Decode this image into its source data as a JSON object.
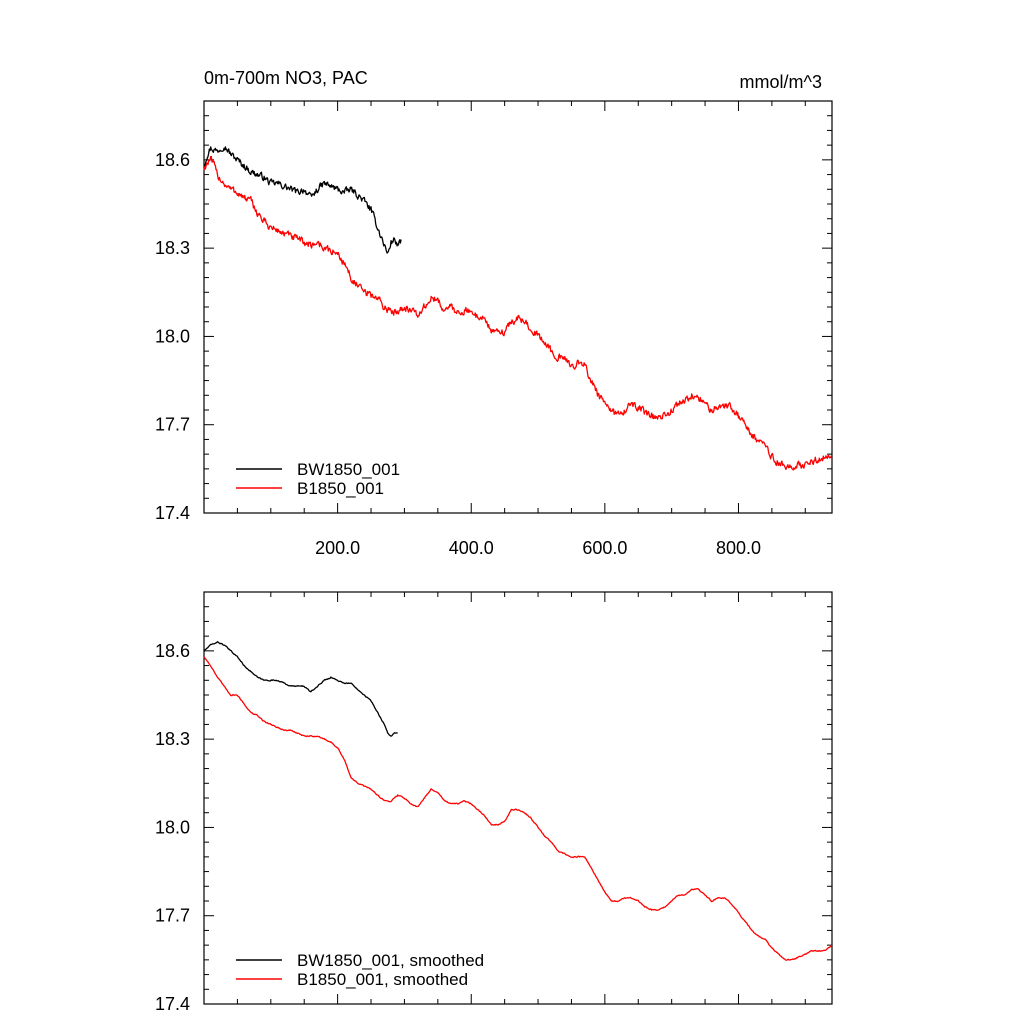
{
  "chart_data": [
    {
      "type": "line",
      "title": "0m-700m NO3, PAC",
      "units": "mmol/m^3",
      "xlim": [
        0,
        940
      ],
      "ylim": [
        17.4,
        18.8
      ],
      "x_major_ticks": [
        200,
        400,
        600,
        800
      ],
      "x_minor_step": 50,
      "x_tick_labels": [
        "200.0",
        "400.0",
        "600.0",
        "800.0"
      ],
      "y_major_ticks": [
        17.4,
        17.7,
        18.0,
        18.3,
        18.6
      ],
      "y_minor_step": 0.05,
      "y_tick_labels": [
        "17.4",
        "17.7",
        "18.0",
        "18.3",
        "18.6"
      ],
      "show_x_labels": true,
      "grid": false,
      "legend_position": "bottom-left",
      "series": [
        {
          "name": "BW1850_001",
          "color": "#000000",
          "noise": 0.018,
          "points": [
            [
              0,
              18.58
            ],
            [
              5,
              18.62
            ],
            [
              10,
              18.64
            ],
            [
              20,
              18.63
            ],
            [
              30,
              18.65
            ],
            [
              40,
              18.62
            ],
            [
              50,
              18.6
            ],
            [
              60,
              18.58
            ],
            [
              70,
              18.56
            ],
            [
              80,
              18.55
            ],
            [
              90,
              18.54
            ],
            [
              100,
              18.52
            ],
            [
              110,
              18.52
            ],
            [
              120,
              18.51
            ],
            [
              130,
              18.5
            ],
            [
              140,
              18.49
            ],
            [
              150,
              18.5
            ],
            [
              160,
              18.47
            ],
            [
              170,
              18.5
            ],
            [
              180,
              18.52
            ],
            [
              190,
              18.51
            ],
            [
              200,
              18.5
            ],
            [
              210,
              18.49
            ],
            [
              220,
              18.5
            ],
            [
              230,
              18.48
            ],
            [
              240,
              18.46
            ],
            [
              250,
              18.43
            ],
            [
              255,
              18.4
            ],
            [
              260,
              18.37
            ],
            [
              265,
              18.34
            ],
            [
              270,
              18.31
            ],
            [
              275,
              18.28
            ],
            [
              280,
              18.32
            ],
            [
              285,
              18.33
            ],
            [
              290,
              18.31
            ],
            [
              295,
              18.32
            ]
          ]
        },
        {
          "name": "B1850_001",
          "color": "#ff0000",
          "noise": 0.02,
          "points": [
            [
              0,
              18.57
            ],
            [
              5,
              18.59
            ],
            [
              10,
              18.6
            ],
            [
              15,
              18.58
            ],
            [
              20,
              18.55
            ],
            [
              30,
              18.52
            ],
            [
              40,
              18.5
            ],
            [
              50,
              18.49
            ],
            [
              60,
              18.47
            ],
            [
              70,
              18.46
            ],
            [
              80,
              18.42
            ],
            [
              90,
              18.39
            ],
            [
              100,
              18.37
            ],
            [
              110,
              18.36
            ],
            [
              120,
              18.35
            ],
            [
              130,
              18.34
            ],
            [
              140,
              18.33
            ],
            [
              150,
              18.32
            ],
            [
              160,
              18.31
            ],
            [
              170,
              18.32
            ],
            [
              180,
              18.3
            ],
            [
              190,
              18.29
            ],
            [
              200,
              18.28
            ],
            [
              210,
              18.25
            ],
            [
              220,
              18.2
            ],
            [
              230,
              18.17
            ],
            [
              240,
              18.15
            ],
            [
              250,
              18.14
            ],
            [
              260,
              18.13
            ],
            [
              270,
              18.1
            ],
            [
              280,
              18.08
            ],
            [
              290,
              18.09
            ],
            [
              300,
              18.1
            ],
            [
              310,
              18.09
            ],
            [
              320,
              18.07
            ],
            [
              330,
              18.1
            ],
            [
              340,
              18.13
            ],
            [
              350,
              18.12
            ],
            [
              360,
              18.09
            ],
            [
              370,
              18.1
            ],
            [
              380,
              18.08
            ],
            [
              390,
              18.09
            ],
            [
              400,
              18.08
            ],
            [
              410,
              18.07
            ],
            [
              420,
              18.06
            ],
            [
              430,
              18.02
            ],
            [
              440,
              18.01
            ],
            [
              450,
              18.02
            ],
            [
              460,
              18.05
            ],
            [
              470,
              18.06
            ],
            [
              480,
              18.05
            ],
            [
              490,
              18.03
            ],
            [
              500,
              18.0
            ],
            [
              510,
              17.98
            ],
            [
              520,
              17.95
            ],
            [
              530,
              17.93
            ],
            [
              540,
              17.92
            ],
            [
              550,
              17.9
            ],
            [
              560,
              17.91
            ],
            [
              570,
              17.9
            ],
            [
              580,
              17.85
            ],
            [
              590,
              17.8
            ],
            [
              600,
              17.77
            ],
            [
              610,
              17.74
            ],
            [
              620,
              17.74
            ],
            [
              630,
              17.75
            ],
            [
              640,
              17.77
            ],
            [
              650,
              17.76
            ],
            [
              660,
              17.74
            ],
            [
              670,
              17.73
            ],
            [
              680,
              17.72
            ],
            [
              690,
              17.73
            ],
            [
              700,
              17.75
            ],
            [
              710,
              17.77
            ],
            [
              720,
              17.78
            ],
            [
              730,
              17.8
            ],
            [
              740,
              17.79
            ],
            [
              750,
              17.77
            ],
            [
              760,
              17.75
            ],
            [
              770,
              17.76
            ],
            [
              780,
              17.77
            ],
            [
              790,
              17.76
            ],
            [
              800,
              17.73
            ],
            [
              810,
              17.7
            ],
            [
              820,
              17.67
            ],
            [
              830,
              17.64
            ],
            [
              840,
              17.63
            ],
            [
              850,
              17.59
            ],
            [
              860,
              17.57
            ],
            [
              870,
              17.56
            ],
            [
              880,
              17.55
            ],
            [
              890,
              17.56
            ],
            [
              900,
              17.57
            ],
            [
              910,
              17.58
            ],
            [
              920,
              17.58
            ],
            [
              930,
              17.59
            ],
            [
              940,
              17.6
            ]
          ]
        }
      ]
    },
    {
      "type": "line",
      "xlim": [
        0,
        940
      ],
      "ylim": [
        17.4,
        18.8
      ],
      "x_major_ticks": [
        200,
        400,
        600,
        800
      ],
      "x_minor_step": 50,
      "y_major_ticks": [
        17.4,
        17.7,
        18.0,
        18.3,
        18.6
      ],
      "y_minor_step": 0.05,
      "y_tick_labels": [
        "17.4",
        "17.7",
        "18.0",
        "18.3",
        "18.6"
      ],
      "show_x_labels": false,
      "grid": false,
      "legend_position": "bottom-left",
      "series": [
        {
          "name": "BW1850_001, smoothed",
          "color": "#000000",
          "noise": 0.003,
          "points": [
            [
              0,
              18.6
            ],
            [
              10,
              18.62
            ],
            [
              20,
              18.63
            ],
            [
              30,
              18.62
            ],
            [
              40,
              18.6
            ],
            [
              50,
              18.58
            ],
            [
              60,
              18.55
            ],
            [
              70,
              18.53
            ],
            [
              80,
              18.51
            ],
            [
              90,
              18.5
            ],
            [
              100,
              18.5
            ],
            [
              110,
              18.5
            ],
            [
              120,
              18.49
            ],
            [
              130,
              18.48
            ],
            [
              140,
              18.48
            ],
            [
              150,
              18.48
            ],
            [
              160,
              18.46
            ],
            [
              170,
              18.48
            ],
            [
              180,
              18.5
            ],
            [
              190,
              18.51
            ],
            [
              200,
              18.5
            ],
            [
              210,
              18.49
            ],
            [
              220,
              18.49
            ],
            [
              230,
              18.47
            ],
            [
              240,
              18.45
            ],
            [
              250,
              18.43
            ],
            [
              260,
              18.39
            ],
            [
              270,
              18.35
            ],
            [
              275,
              18.32
            ],
            [
              280,
              18.31
            ],
            [
              285,
              18.32
            ],
            [
              290,
              18.32
            ]
          ]
        },
        {
          "name": "B1850_001, smoothed",
          "color": "#ff0000",
          "noise": 0.003,
          "points": [
            [
              0,
              18.58
            ],
            [
              10,
              18.55
            ],
            [
              20,
              18.51
            ],
            [
              30,
              18.48
            ],
            [
              40,
              18.45
            ],
            [
              50,
              18.45
            ],
            [
              60,
              18.42
            ],
            [
              70,
              18.39
            ],
            [
              80,
              18.38
            ],
            [
              90,
              18.36
            ],
            [
              100,
              18.35
            ],
            [
              110,
              18.34
            ],
            [
              120,
              18.33
            ],
            [
              130,
              18.33
            ],
            [
              140,
              18.32
            ],
            [
              150,
              18.31
            ],
            [
              160,
              18.31
            ],
            [
              170,
              18.31
            ],
            [
              180,
              18.3
            ],
            [
              190,
              18.29
            ],
            [
              200,
              18.27
            ],
            [
              210,
              18.23
            ],
            [
              220,
              18.17
            ],
            [
              230,
              18.15
            ],
            [
              240,
              18.14
            ],
            [
              250,
              18.13
            ],
            [
              260,
              18.11
            ],
            [
              270,
              18.09
            ],
            [
              280,
              18.09
            ],
            [
              290,
              18.11
            ],
            [
              300,
              18.1
            ],
            [
              310,
              18.08
            ],
            [
              320,
              18.07
            ],
            [
              330,
              18.1
            ],
            [
              340,
              18.13
            ],
            [
              350,
              18.12
            ],
            [
              360,
              18.09
            ],
            [
              370,
              18.08
            ],
            [
              380,
              18.08
            ],
            [
              390,
              18.09
            ],
            [
              400,
              18.08
            ],
            [
              410,
              18.06
            ],
            [
              420,
              18.04
            ],
            [
              430,
              18.01
            ],
            [
              440,
              18.01
            ],
            [
              450,
              18.02
            ],
            [
              460,
              18.06
            ],
            [
              470,
              18.06
            ],
            [
              480,
              18.05
            ],
            [
              490,
              18.03
            ],
            [
              500,
              18.0
            ],
            [
              510,
              17.97
            ],
            [
              520,
              17.95
            ],
            [
              530,
              17.92
            ],
            [
              540,
              17.91
            ],
            [
              550,
              17.9
            ],
            [
              560,
              17.9
            ],
            [
              570,
              17.9
            ],
            [
              580,
              17.86
            ],
            [
              590,
              17.82
            ],
            [
              600,
              17.78
            ],
            [
              610,
              17.75
            ],
            [
              620,
              17.75
            ],
            [
              630,
              17.76
            ],
            [
              640,
              17.76
            ],
            [
              650,
              17.75
            ],
            [
              660,
              17.73
            ],
            [
              670,
              17.72
            ],
            [
              680,
              17.72
            ],
            [
              690,
              17.73
            ],
            [
              700,
              17.75
            ],
            [
              710,
              17.77
            ],
            [
              720,
              17.77
            ],
            [
              730,
              17.79
            ],
            [
              740,
              17.79
            ],
            [
              750,
              17.77
            ],
            [
              760,
              17.75
            ],
            [
              770,
              17.76
            ],
            [
              780,
              17.76
            ],
            [
              790,
              17.74
            ],
            [
              800,
              17.71
            ],
            [
              810,
              17.68
            ],
            [
              820,
              17.65
            ],
            [
              830,
              17.63
            ],
            [
              840,
              17.62
            ],
            [
              850,
              17.59
            ],
            [
              860,
              17.57
            ],
            [
              870,
              17.55
            ],
            [
              880,
              17.55
            ],
            [
              890,
              17.56
            ],
            [
              900,
              17.57
            ],
            [
              910,
              17.58
            ],
            [
              920,
              17.58
            ],
            [
              930,
              17.58
            ],
            [
              940,
              17.6
            ]
          ]
        }
      ]
    }
  ]
}
